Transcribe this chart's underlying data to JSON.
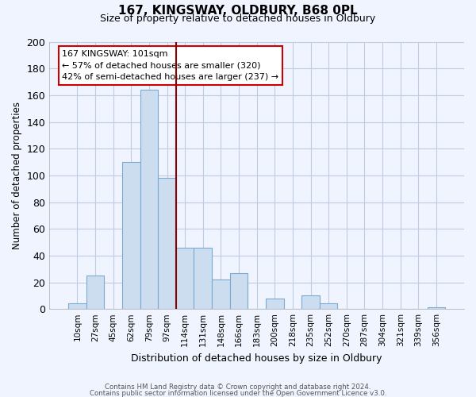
{
  "title": "167, KINGSWAY, OLDBURY, B68 0PL",
  "subtitle": "Size of property relative to detached houses in Oldbury",
  "xlabel": "Distribution of detached houses by size in Oldbury",
  "ylabel": "Number of detached properties",
  "bar_color": "#ccddf0",
  "bar_edge_color": "#7aaad0",
  "categories": [
    "10sqm",
    "27sqm",
    "45sqm",
    "62sqm",
    "79sqm",
    "97sqm",
    "114sqm",
    "131sqm",
    "148sqm",
    "166sqm",
    "183sqm",
    "200sqm",
    "218sqm",
    "235sqm",
    "252sqm",
    "270sqm",
    "287sqm",
    "304sqm",
    "321sqm",
    "339sqm",
    "356sqm"
  ],
  "values": [
    4,
    25,
    0,
    110,
    164,
    98,
    46,
    46,
    22,
    27,
    0,
    8,
    0,
    10,
    4,
    0,
    0,
    0,
    0,
    0,
    1
  ],
  "ylim": [
    0,
    200
  ],
  "yticks": [
    0,
    20,
    40,
    60,
    80,
    100,
    120,
    140,
    160,
    180,
    200
  ],
  "vline_x": 5.5,
  "vline_color": "#8b0000",
  "annotation_text": "167 KINGSWAY: 101sqm\n← 57% of detached houses are smaller (320)\n42% of semi-detached houses are larger (237) →",
  "annotation_box_color": "white",
  "annotation_box_edge": "#cc0000",
  "footer_line1": "Contains HM Land Registry data © Crown copyright and database right 2024.",
  "footer_line2": "Contains public sector information licensed under the Open Government Licence v3.0.",
  "bg_color": "#f0f4ff",
  "grid_color": "#c0cce0"
}
